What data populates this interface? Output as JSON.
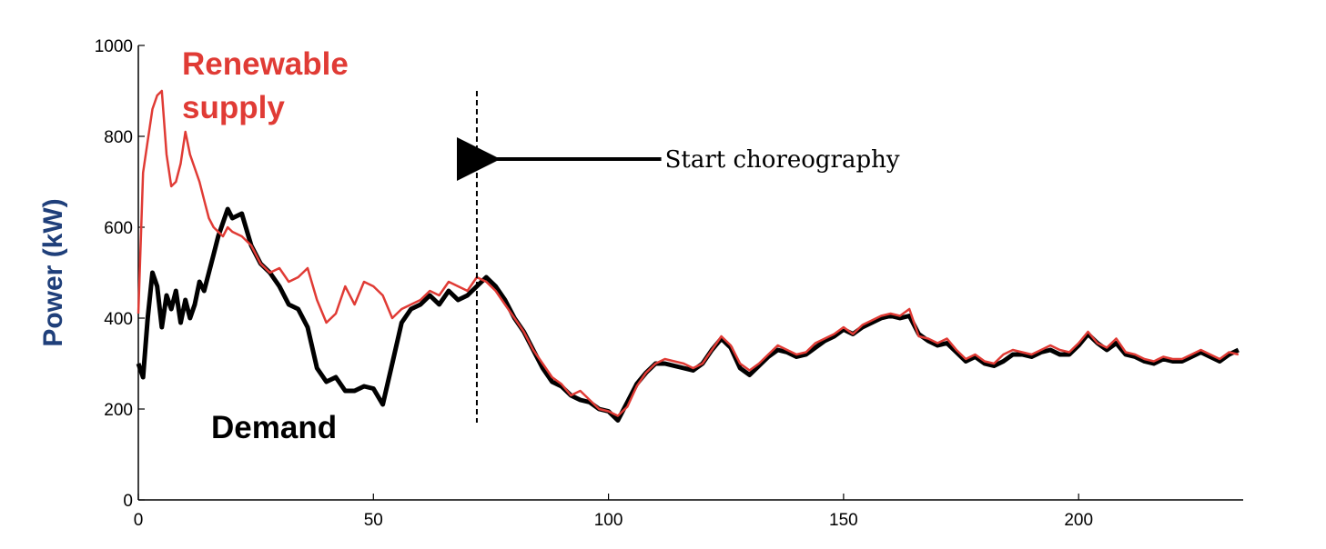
{
  "chart_data": {
    "type": "line",
    "title": "",
    "xlabel": "",
    "ylabel": "Power (kW)",
    "xlim": [
      0,
      235
    ],
    "ylim": [
      0,
      1000
    ],
    "xticks": [
      "0",
      "50",
      "100",
      "150",
      "200"
    ],
    "yticks": [
      "0",
      "200",
      "400",
      "600",
      "800",
      "1000"
    ],
    "grid": false,
    "series": [
      {
        "name": "Renewable supply",
        "color": "#e03b35",
        "x": [
          0,
          1,
          2,
          3,
          4,
          5,
          6,
          7,
          8,
          9,
          10,
          11,
          12,
          13,
          14,
          15,
          16,
          17,
          18,
          19,
          20,
          22,
          24,
          26,
          28,
          30,
          32,
          34,
          36,
          38,
          40,
          42,
          44,
          46,
          48,
          50,
          52,
          54,
          56,
          58,
          60,
          62,
          64,
          66,
          68,
          70,
          72,
          74,
          76,
          78,
          80,
          82,
          84,
          86,
          88,
          90,
          92,
          94,
          96,
          98,
          100,
          102,
          104,
          106,
          108,
          110,
          112,
          114,
          116,
          118,
          120,
          122,
          124,
          126,
          128,
          130,
          132,
          134,
          136,
          138,
          140,
          142,
          144,
          146,
          148,
          150,
          152,
          154,
          156,
          158,
          160,
          162,
          164,
          166,
          168,
          170,
          172,
          174,
          176,
          178,
          180,
          182,
          184,
          186,
          188,
          190,
          192,
          194,
          196,
          198,
          200,
          202,
          204,
          206,
          208,
          210,
          212,
          214,
          216,
          218,
          220,
          222,
          224,
          226,
          228,
          230,
          232,
          234
        ],
        "values": [
          410,
          720,
          790,
          860,
          890,
          900,
          760,
          690,
          700,
          740,
          810,
          760,
          730,
          700,
          660,
          620,
          600,
          590,
          580,
          600,
          590,
          580,
          560,
          520,
          500,
          510,
          480,
          490,
          510,
          440,
          390,
          410,
          470,
          430,
          480,
          470,
          450,
          400,
          420,
          430,
          440,
          460,
          450,
          480,
          470,
          460,
          490,
          480,
          460,
          430,
          400,
          370,
          330,
          300,
          270,
          255,
          230,
          240,
          220,
          200,
          195,
          185,
          205,
          250,
          280,
          300,
          310,
          305,
          300,
          290,
          300,
          330,
          360,
          340,
          300,
          285,
          300,
          320,
          340,
          330,
          320,
          325,
          345,
          355,
          365,
          380,
          365,
          385,
          395,
          405,
          410,
          405,
          420,
          360,
          355,
          345,
          355,
          330,
          310,
          320,
          305,
          300,
          320,
          330,
          325,
          320,
          330,
          340,
          330,
          325,
          345,
          370,
          345,
          335,
          355,
          325,
          320,
          310,
          305,
          315,
          310,
          310,
          320,
          330,
          320,
          310,
          325,
          320
        ]
      },
      {
        "name": "Demand",
        "color": "#000000",
        "x": [
          0,
          1,
          2,
          3,
          4,
          5,
          6,
          7,
          8,
          9,
          10,
          11,
          12,
          13,
          14,
          15,
          16,
          17,
          18,
          19,
          20,
          22,
          24,
          26,
          28,
          30,
          32,
          34,
          36,
          38,
          40,
          42,
          44,
          46,
          48,
          50,
          52,
          54,
          56,
          58,
          60,
          62,
          64,
          66,
          68,
          70,
          72,
          74,
          76,
          78,
          80,
          82,
          84,
          86,
          88,
          90,
          92,
          94,
          96,
          98,
          100,
          102,
          104,
          106,
          108,
          110,
          112,
          114,
          116,
          118,
          120,
          122,
          124,
          126,
          128,
          130,
          132,
          134,
          136,
          138,
          140,
          142,
          144,
          146,
          148,
          150,
          152,
          154,
          156,
          158,
          160,
          162,
          164,
          166,
          168,
          170,
          172,
          174,
          176,
          178,
          180,
          182,
          184,
          186,
          188,
          190,
          192,
          194,
          196,
          198,
          200,
          202,
          204,
          206,
          208,
          210,
          212,
          214,
          216,
          218,
          220,
          222,
          224,
          226,
          228,
          230,
          232,
          234
        ],
        "values": [
          300,
          270,
          400,
          500,
          470,
          380,
          450,
          420,
          460,
          390,
          440,
          400,
          430,
          480,
          460,
          500,
          540,
          580,
          610,
          640,
          620,
          630,
          560,
          520,
          500,
          470,
          430,
          420,
          380,
          290,
          260,
          270,
          240,
          240,
          250,
          245,
          210,
          300,
          390,
          420,
          430,
          450,
          430,
          460,
          440,
          450,
          470,
          490,
          470,
          440,
          400,
          370,
          330,
          290,
          260,
          250,
          230,
          220,
          215,
          200,
          195,
          175,
          215,
          255,
          280,
          300,
          300,
          295,
          290,
          285,
          300,
          330,
          355,
          335,
          290,
          275,
          295,
          315,
          330,
          325,
          315,
          320,
          335,
          350,
          360,
          375,
          365,
          380,
          390,
          400,
          405,
          400,
          405,
          365,
          350,
          340,
          345,
          325,
          305,
          315,
          300,
          295,
          305,
          320,
          320,
          315,
          325,
          330,
          320,
          320,
          340,
          365,
          345,
          330,
          345,
          320,
          315,
          305,
          300,
          310,
          305,
          305,
          315,
          325,
          315,
          305,
          320,
          330
        ]
      }
    ],
    "annotations": {
      "vertical_line_x": 72,
      "vertical_line_ylim": [
        170,
        900
      ],
      "arrow_text": "Start choreography",
      "arrow_y": 750,
      "arrow_text_x": 112
    },
    "legend_labels": {
      "renewable_line1": "Renewable",
      "renewable_line2": "supply",
      "demand": "Demand"
    }
  }
}
